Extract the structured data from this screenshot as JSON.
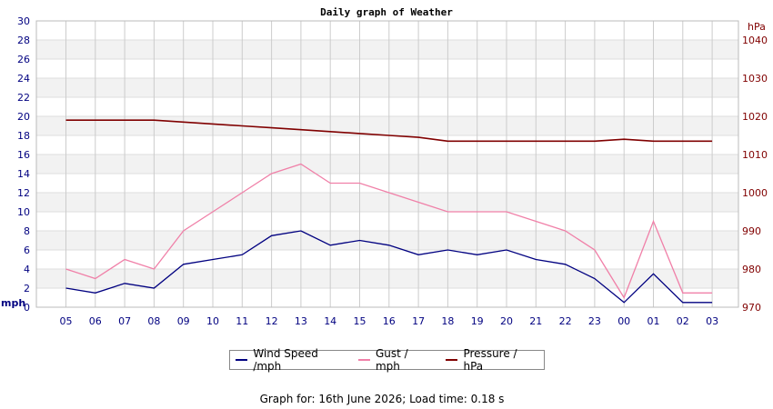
{
  "chart_data": {
    "type": "line",
    "title": "Daily graph of Weather",
    "left_axis": {
      "label": "mph",
      "ylim": [
        0,
        30
      ],
      "ticks": [
        "0",
        "2",
        "4",
        "6",
        "8",
        "10",
        "12",
        "14",
        "16",
        "18",
        "20",
        "22",
        "24",
        "26",
        "28",
        "30"
      ]
    },
    "right_axis": {
      "label": "hPa",
      "ylim": [
        970,
        1045
      ],
      "ticks": [
        "970",
        "980",
        "990",
        "1000",
        "1010",
        "1020",
        "1030",
        "1040"
      ]
    },
    "x_ticks": [
      "05",
      "06",
      "07",
      "08",
      "09",
      "10",
      "11",
      "12",
      "13",
      "14",
      "15",
      "16",
      "17",
      "18",
      "19",
      "20",
      "21",
      "22",
      "23",
      "00",
      "01",
      "02",
      "03"
    ],
    "grid": true,
    "legend_position": "bottom",
    "colors": {
      "wind": "#000080",
      "gust": "#f080a8",
      "pressure": "#800000",
      "left_axis_text": "#000080",
      "right_axis_text": "#800000"
    },
    "series": [
      {
        "name": "Wind Speed /mph",
        "axis": "left",
        "x": [
          "05",
          "06",
          "07",
          "08",
          "09",
          "10",
          "11",
          "12",
          "13",
          "14",
          "15",
          "16",
          "17",
          "18",
          "19",
          "20",
          "21",
          "22",
          "23",
          "00",
          "01",
          "02",
          "03"
        ],
        "values": [
          2,
          1.5,
          2.5,
          2,
          4.5,
          5,
          5.5,
          7.5,
          8,
          6.5,
          7,
          6.5,
          5.5,
          6,
          5.5,
          6,
          5,
          4.5,
          3,
          0.5,
          3.5,
          0.5,
          0.5
        ]
      },
      {
        "name": "Gust / mph",
        "axis": "left",
        "x": [
          "05",
          "06",
          "07",
          "08",
          "09",
          "10",
          "11",
          "12",
          "13",
          "14",
          "15",
          "16",
          "17",
          "18",
          "19",
          "20",
          "21",
          "22",
          "23",
          "00",
          "01",
          "02",
          "03"
        ],
        "values": [
          4,
          3,
          5,
          4,
          8,
          10,
          12,
          14,
          15,
          13,
          13,
          12,
          11,
          10,
          10,
          10,
          9,
          8,
          6,
          1,
          9,
          1.5,
          1.5
        ]
      },
      {
        "name": "Pressure / hPa",
        "axis": "right",
        "x": [
          "05",
          "06",
          "07",
          "08",
          "09",
          "10",
          "11",
          "12",
          "13",
          "14",
          "15",
          "16",
          "17",
          "18",
          "19",
          "20",
          "21",
          "22",
          "23",
          "00",
          "01",
          "02",
          "03"
        ],
        "values": [
          1019,
          1019,
          1019,
          1019,
          1018.5,
          1018,
          1017.5,
          1017,
          1016.5,
          1016,
          1015.5,
          1015,
          1014.5,
          1013.5,
          1013.5,
          1013.5,
          1013.5,
          1013.5,
          1013.5,
          1014,
          1013.5,
          1013.5,
          1013.5
        ]
      }
    ]
  },
  "legend": {
    "wind": "Wind Speed /mph",
    "gust": "Gust / mph",
    "pressure": "Pressure / hPa"
  },
  "footer": "Graph for: 16th June 2026; Load time: 0.18 s"
}
